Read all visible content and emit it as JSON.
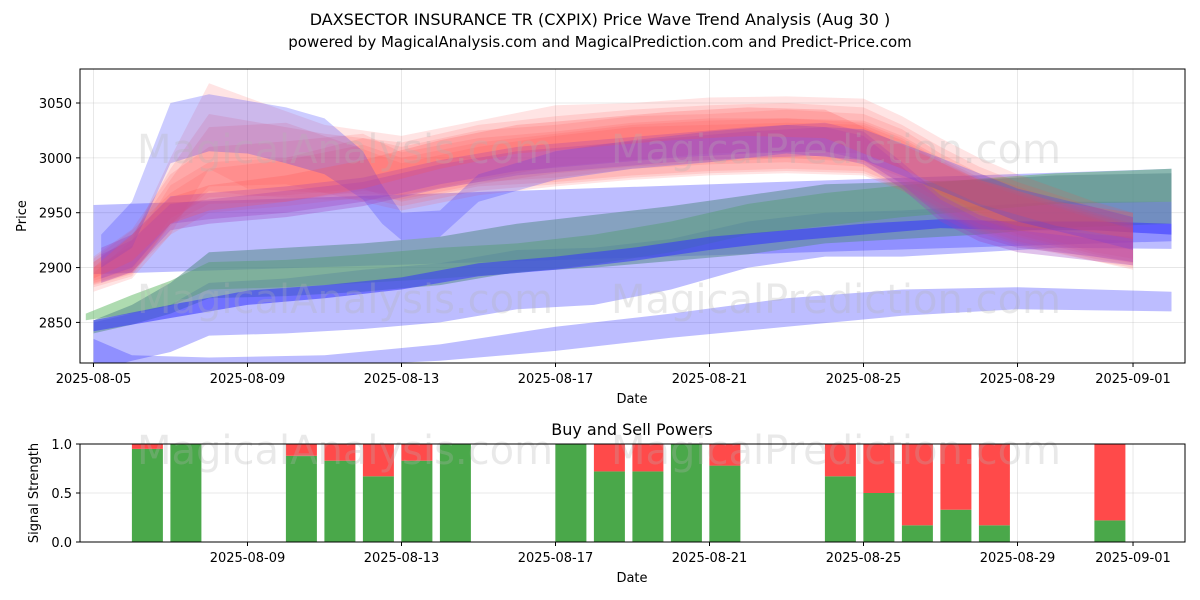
{
  "header": {
    "title": "DAXSECTOR INSURANCE TR (CXPIX) Price Wave Trend Analysis (Aug 30 )",
    "subtitle": "powered by MagicalAnalysis.com and MagicalPrediction.com and Predict-Price.com"
  },
  "watermarks": {
    "left": "MagicalAnalysis.com",
    "right": "MagicalPrediction.com"
  },
  "colors": {
    "red": "#ff4d4d",
    "blue": "#3333ff",
    "green": "#4caf50",
    "purple": "#a040c0",
    "teal": "#5a8c8c",
    "buy": "#4aa84a",
    "sell": "#ff4a4a"
  },
  "chart_data": [
    {
      "type": "area",
      "title": "",
      "xlabel": "Date",
      "ylabel": "Price",
      "x_domain": [
        -0.35,
        28.35
      ],
      "ylim": [
        2813,
        3081
      ],
      "xticks": [
        {
          "day": 0,
          "label": "2025-08-05"
        },
        {
          "day": 4,
          "label": "2025-08-09"
        },
        {
          "day": 8,
          "label": "2025-08-13"
        },
        {
          "day": 12,
          "label": "2025-08-17"
        },
        {
          "day": 16,
          "label": "2025-08-21"
        },
        {
          "day": 20,
          "label": "2025-08-25"
        },
        {
          "day": 24,
          "label": "2025-08-29"
        },
        {
          "day": 27,
          "label": "2025-09-01"
        }
      ],
      "yticks": [
        2850,
        2900,
        2950,
        3000,
        3050
      ],
      "grid": true,
      "bands": [
        {
          "color": "blue",
          "opacity": 0.32,
          "x": [
            0,
            28
          ],
          "upper": [
            2957,
            2990
          ],
          "lower": [
            2894,
            2924
          ]
        },
        {
          "color": "blue",
          "opacity": 0.32,
          "x": [
            0,
            1,
            2,
            3,
            5,
            7,
            9,
            11,
            13,
            15,
            17,
            19,
            21,
            23,
            25,
            28
          ],
          "upper": [
            2850,
            2858,
            2866,
            2886,
            2890,
            2898,
            2904,
            2916,
            2918,
            2926,
            2942,
            2950,
            2952,
            2956,
            2960,
            2960
          ],
          "lower": [
            2806,
            2815,
            2823,
            2838,
            2840,
            2844,
            2850,
            2862,
            2866,
            2880,
            2900,
            2910,
            2910,
            2914,
            2918,
            2917
          ]
        },
        {
          "color": "blue",
          "opacity": 0.32,
          "x": [
            0,
            1,
            3,
            6,
            9,
            12,
            15,
            18,
            21,
            24,
            28
          ],
          "upper": [
            2835,
            2820,
            2818,
            2820,
            2830,
            2846,
            2858,
            2872,
            2880,
            2882,
            2878
          ],
          "lower": [
            2812,
            2808,
            2808,
            2810,
            2815,
            2824,
            2836,
            2846,
            2856,
            2862,
            2860
          ]
        },
        {
          "color": "green",
          "opacity": 0.45,
          "x": [
            -0.2,
            1,
            2,
            3,
            5,
            7,
            9,
            11,
            13,
            15,
            17,
            19,
            21,
            23,
            25,
            28
          ],
          "upper": [
            2858,
            2875,
            2888,
            2905,
            2907,
            2912,
            2918,
            2922,
            2930,
            2942,
            2958,
            2968,
            2975,
            2981,
            2986,
            2990
          ],
          "lower": [
            2852,
            2858,
            2865,
            2880,
            2882,
            2886,
            2890,
            2895,
            2903,
            2914,
            2930,
            2938,
            2946,
            2952,
            2958,
            2960
          ]
        },
        {
          "color": "teal",
          "opacity": 0.55,
          "x": [
            0,
            1,
            2,
            3,
            5,
            7,
            9,
            11,
            13,
            15,
            17,
            19,
            21,
            23,
            25,
            28
          ],
          "upper": [
            2852,
            2866,
            2886,
            2914,
            2918,
            2922,
            2928,
            2940,
            2948,
            2956,
            2966,
            2976,
            2978,
            2980,
            2984,
            2986
          ],
          "lower": [
            2840,
            2848,
            2858,
            2872,
            2874,
            2878,
            2884,
            2896,
            2900,
            2906,
            2912,
            2922,
            2926,
            2930,
            2936,
            2940
          ]
        },
        {
          "color": "blue",
          "opacity": 0.55,
          "x": [
            0,
            2,
            4,
            6,
            8,
            10,
            12,
            14,
            16,
            18,
            20,
            22,
            24,
            26,
            28
          ],
          "upper": [
            2852,
            2866,
            2879,
            2884,
            2891,
            2904,
            2910,
            2918,
            2928,
            2934,
            2940,
            2944,
            2942,
            2942,
            2940
          ],
          "lower": [
            2842,
            2854,
            2866,
            2872,
            2880,
            2892,
            2898,
            2906,
            2916,
            2924,
            2930,
            2936,
            2934,
            2934,
            2930
          ]
        },
        {
          "color": "red",
          "opacity": 0.15,
          "x": [
            0,
            1,
            2,
            3,
            4,
            6,
            8,
            10,
            12,
            14,
            16,
            18,
            20,
            21,
            22,
            23,
            24,
            26,
            27
          ],
          "upper": [
            2895,
            2925,
            3000,
            3068,
            3055,
            3030,
            3020,
            3034,
            3048,
            3050,
            3055,
            3056,
            3054,
            3038,
            3018,
            3000,
            2985,
            2960,
            2950
          ],
          "lower": [
            2878,
            2890,
            2930,
            2990,
            2972,
            2968,
            2966,
            2980,
            2992,
            2998,
            3004,
            3006,
            3004,
            2990,
            2968,
            2950,
            2934,
            2914,
            2908
          ]
        },
        {
          "color": "red",
          "opacity": 0.15,
          "x": [
            0,
            1,
            2,
            3,
            4,
            6,
            8,
            10,
            12,
            14,
            16,
            18,
            20,
            21,
            22,
            23,
            24,
            26,
            27
          ],
          "upper": [
            2905,
            2928,
            2990,
            3040,
            3034,
            3022,
            3014,
            3030,
            3038,
            3044,
            3048,
            3050,
            3046,
            3030,
            3010,
            2992,
            2978,
            2955,
            2945
          ],
          "lower": [
            2885,
            2895,
            2940,
            2970,
            2966,
            2962,
            2962,
            2976,
            2986,
            2992,
            2996,
            3000,
            2996,
            2982,
            2962,
            2945,
            2930,
            2912,
            2905
          ]
        },
        {
          "color": "red",
          "opacity": 0.15,
          "x": [
            0,
            1,
            2,
            3,
            5,
            7,
            8,
            10,
            12,
            14,
            16,
            18,
            20,
            21,
            22,
            23,
            24,
            26,
            27
          ],
          "upper": [
            2900,
            2920,
            2975,
            2996,
            3000,
            3018,
            3010,
            3025,
            3030,
            3038,
            3040,
            3044,
            3040,
            3026,
            3004,
            2986,
            2974,
            2950,
            2940
          ],
          "lower": [
            2882,
            2892,
            2940,
            2958,
            2960,
            2970,
            2966,
            2978,
            2982,
            2990,
            2994,
            2996,
            2992,
            2978,
            2958,
            2940,
            2928,
            2910,
            2904
          ]
        },
        {
          "color": "red",
          "opacity": 0.15,
          "x": [
            0,
            1,
            2,
            3,
            5,
            7,
            8,
            10,
            12,
            14,
            16,
            18,
            20,
            21,
            22,
            23,
            24,
            26,
            27
          ],
          "upper": [
            2910,
            2935,
            2985,
            3010,
            3015,
            3022,
            3005,
            3018,
            3024,
            3032,
            3036,
            3036,
            3034,
            3020,
            3000,
            2982,
            2970,
            2948,
            2938
          ],
          "lower": [
            2888,
            2898,
            2945,
            2964,
            2966,
            2972,
            2960,
            2974,
            2978,
            2984,
            2988,
            2990,
            2988,
            2974,
            2954,
            2936,
            2924,
            2908,
            2902
          ]
        },
        {
          "color": "red",
          "opacity": 0.15,
          "x": [
            0,
            1,
            2,
            3,
            5,
            7,
            8,
            10,
            12,
            14,
            16,
            18,
            20,
            21,
            22,
            23,
            24,
            26,
            27
          ],
          "upper": [
            2905,
            2930,
            2980,
            3028,
            3032,
            3008,
            2995,
            3010,
            3020,
            3028,
            3030,
            3032,
            3030,
            3016,
            2996,
            2978,
            2966,
            2944,
            2936
          ],
          "lower": [
            2884,
            2894,
            2938,
            2974,
            2976,
            2960,
            2952,
            2966,
            2974,
            2980,
            2984,
            2986,
            2984,
            2970,
            2950,
            2932,
            2920,
            2906,
            2900
          ]
        },
        {
          "color": "red",
          "opacity": 0.15,
          "x": [
            0,
            1,
            2,
            3,
            5,
            7,
            8,
            10,
            12,
            14,
            16,
            18,
            20,
            21,
            22,
            23,
            24,
            26,
            27
          ],
          "upper": [
            2908,
            2934,
            2968,
            2990,
            2998,
            3012,
            3000,
            3014,
            3022,
            3030,
            3034,
            3036,
            3032,
            3018,
            2998,
            2980,
            2968,
            2946,
            2934
          ],
          "lower": [
            2886,
            2896,
            2930,
            2950,
            2956,
            2964,
            2956,
            2970,
            2976,
            2982,
            2986,
            2988,
            2986,
            2972,
            2952,
            2934,
            2922,
            2906,
            2898
          ]
        },
        {
          "color": "blue",
          "opacity": 0.25,
          "x": [
            0.2,
            1,
            2,
            3,
            4,
            5,
            6,
            7,
            7.5,
            8,
            9,
            10,
            12,
            14,
            16,
            18,
            20,
            22,
            24,
            26,
            27
          ],
          "upper": [
            2930,
            2960,
            3050,
            3058,
            3052,
            3046,
            3036,
            3006,
            2975,
            2950,
            2952,
            2985,
            3006,
            3016,
            3024,
            3030,
            3026,
            3000,
            2972,
            2955,
            2946
          ],
          "lower": [
            2900,
            2918,
            2995,
            3006,
            3004,
            2995,
            2985,
            2962,
            2940,
            2925,
            2928,
            2960,
            2980,
            2990,
            2996,
            3004,
            2998,
            2970,
            2942,
            2925,
            2916
          ]
        },
        {
          "color": "purple",
          "opacity": 0.32,
          "x": [
            0.2,
            1,
            2,
            3,
            5,
            7,
            9,
            11,
            13,
            15,
            17,
            19,
            20,
            21,
            22,
            23,
            24,
            26,
            27
          ],
          "upper": [
            2918,
            2930,
            2965,
            2968,
            2974,
            2982,
            2998,
            3010,
            3016,
            3022,
            3028,
            3032,
            3024,
            2996,
            2966,
            2948,
            2938,
            2930,
            2928
          ],
          "lower": [
            2890,
            2900,
            2940,
            2944,
            2950,
            2960,
            2976,
            2988,
            2994,
            3000,
            3004,
            3006,
            2998,
            2976,
            2946,
            2928,
            2918,
            2910,
            2905
          ]
        },
        {
          "color": "purple",
          "opacity": 0.32,
          "x": [
            0.2,
            1,
            2,
            3,
            5,
            7,
            9,
            11,
            13,
            15,
            17,
            19,
            20,
            21,
            22,
            23,
            24,
            26,
            27
          ],
          "upper": [
            2912,
            2925,
            2958,
            2962,
            2970,
            2978,
            2994,
            3006,
            3012,
            3018,
            3024,
            3028,
            3020,
            2992,
            2962,
            2944,
            2934,
            2926,
            2924
          ],
          "lower": [
            2886,
            2896,
            2934,
            2940,
            2946,
            2956,
            2972,
            2984,
            2990,
            2996,
            3000,
            3002,
            2994,
            2972,
            2942,
            2924,
            2914,
            2906,
            2902
          ]
        },
        {
          "color": "red",
          "opacity": 0.22,
          "x": [
            0,
            1,
            2,
            3,
            5,
            7,
            9,
            11,
            13,
            15,
            17,
            19,
            21,
            23,
            25,
            27
          ],
          "upper": [
            2900,
            2930,
            2964,
            2975,
            2984,
            2998,
            3016,
            3030,
            3036,
            3042,
            3046,
            3044,
            3012,
            2980,
            2960,
            2950
          ],
          "lower": [
            2890,
            2906,
            2940,
            2952,
            2960,
            2972,
            2990,
            3004,
            3010,
            3016,
            3020,
            3018,
            2990,
            2958,
            2938,
            2926
          ]
        }
      ]
    },
    {
      "type": "bar",
      "title": "Buy and Sell Powers",
      "xlabel": "Date",
      "ylabel": "Signal Strength",
      "x_domain": [
        -0.35,
        28.35
      ],
      "ylim": [
        0,
        1
      ],
      "yticks": [
        {
          "value": 0,
          "label": "0.0"
        },
        {
          "value": 0.5,
          "label": "0.5"
        },
        {
          "value": 1,
          "label": "1.0"
        }
      ],
      "xticks": [
        {
          "day": 4,
          "label": "2025-08-09"
        },
        {
          "day": 8,
          "label": "2025-08-13"
        },
        {
          "day": 12,
          "label": "2025-08-17"
        },
        {
          "day": 16,
          "label": "2025-08-21"
        },
        {
          "day": 20,
          "label": "2025-08-25"
        },
        {
          "day": 24,
          "label": "2025-08-29"
        },
        {
          "day": 27,
          "label": "2025-09-01"
        }
      ],
      "grid": true,
      "series": [
        {
          "name": "Buy",
          "color": "buy"
        },
        {
          "name": "Sell",
          "color": "sell"
        }
      ],
      "days": [
        1.4,
        2.4,
        5.4,
        6.4,
        7.4,
        8.4,
        9.4,
        12.4,
        13.4,
        14.4,
        15.4,
        16.4,
        19.4,
        20.4,
        21.4,
        22.4,
        23.4,
        26.4
      ],
      "buy": [
        0.95,
        1.0,
        0.88,
        0.83,
        0.67,
        0.83,
        1.0,
        1.0,
        0.72,
        0.72,
        1.0,
        0.78,
        0.67,
        0.5,
        0.17,
        0.33,
        0.17,
        0.22
      ],
      "sell": [
        0.05,
        0.0,
        0.12,
        0.17,
        0.33,
        0.17,
        0.0,
        0.0,
        0.28,
        0.28,
        0.0,
        0.22,
        0.33,
        0.5,
        0.83,
        0.67,
        0.83,
        0.78
      ]
    }
  ]
}
